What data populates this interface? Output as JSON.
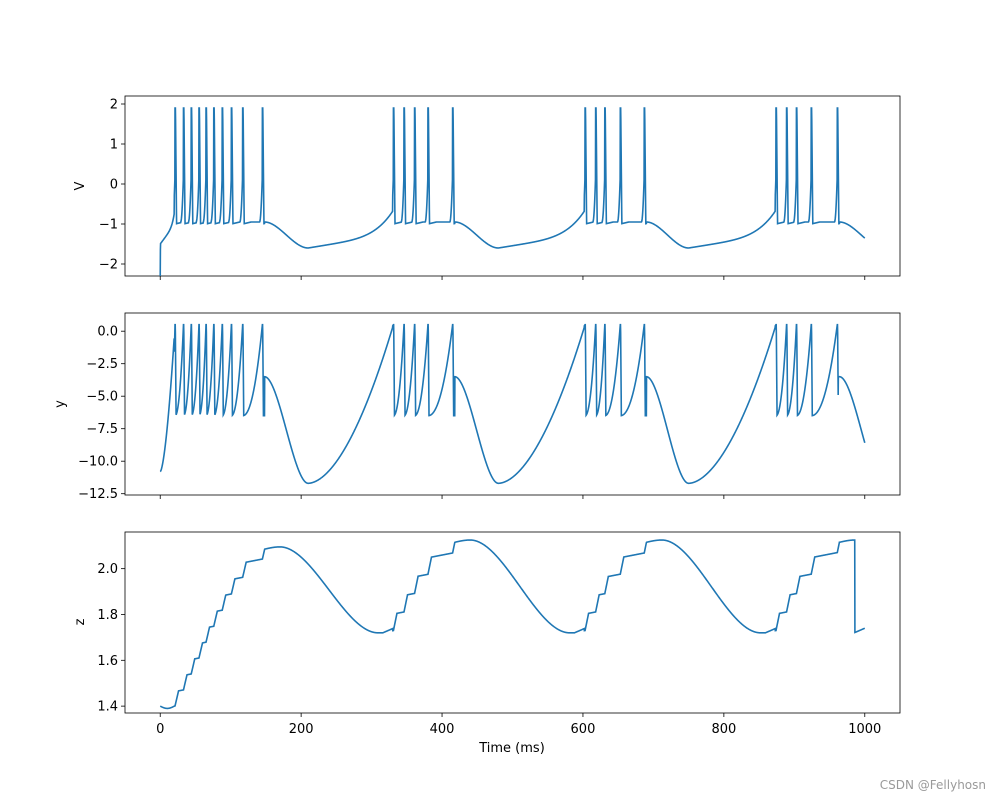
{
  "watermark": "CSDN @Fellyhosn",
  "colors": {
    "line": "#1f77b4",
    "axes": "#000000"
  },
  "chart_data": [
    {
      "type": "line",
      "xlabel": "",
      "ylabel": "V",
      "xlim": [
        -50,
        1050
      ],
      "ylim": [
        -2.3,
        2.2
      ],
      "xticks": [
        0,
        200,
        400,
        600,
        800,
        1000
      ],
      "yticks": [
        -2,
        -1,
        0,
        1,
        2
      ],
      "ytick_labels": [
        "−2",
        "−1",
        "0",
        "1",
        "2"
      ],
      "show_xtick_labels": false,
      "model": {
        "spikes": [
          [
            0,
            21,
            33,
            44,
            55,
            65,
            76,
            88,
            101,
            117,
            145
          ],
          [
            1,
            331,
            346,
            361,
            380,
            415
          ],
          [
            2,
            603,
            618,
            631,
            653,
            687
          ],
          [
            3,
            874,
            889,
            903,
            924,
            961
          ]
        ],
        "burst_ends": [
          148,
          418,
          690,
          964
        ],
        "trough_times": [
          210,
          480,
          750
        ]
      },
      "series": [
        {
          "name": "V",
          "line_color": "#1f77b4",
          "x_range": [
            0,
            1000
          ],
          "spike_peak": 1.9,
          "post_spike_reset": -1.0,
          "inter_burst_min": -1.6,
          "initial_value": -2.3
        }
      ]
    },
    {
      "type": "line",
      "xlabel": "",
      "ylabel": "y",
      "xlim": [
        -50,
        1050
      ],
      "ylim": [
        -12.6,
        1.4
      ],
      "xticks": [
        0,
        200,
        400,
        600,
        800,
        1000
      ],
      "yticks": [
        0.0,
        -2.5,
        -5.0,
        -7.5,
        -10.0,
        -12.5
      ],
      "ytick_labels": [
        "0.0",
        "−2.5",
        "−5.0",
        "−7.5",
        "−10.0",
        "−12.5"
      ],
      "show_xtick_labels": false,
      "series": [
        {
          "name": "y",
          "line_color": "#1f77b4",
          "x_range": [
            0,
            1000
          ],
          "spike_peak": 0.5,
          "post_spike_reset": -6.5,
          "inter_burst_min": -11.8,
          "initial_value": -10.8
        }
      ]
    },
    {
      "type": "line",
      "xlabel": "Time (ms)",
      "ylabel": "z",
      "xlim": [
        -50,
        1050
      ],
      "ylim": [
        1.37,
        2.16
      ],
      "xticks": [
        0,
        200,
        400,
        600,
        800,
        1000
      ],
      "xtick_labels": [
        "0",
        "200",
        "400",
        "600",
        "800",
        "1000"
      ],
      "yticks": [
        1.4,
        1.6,
        1.8,
        2.0
      ],
      "ytick_labels": [
        "1.4",
        "1.6",
        "1.8",
        "2.0"
      ],
      "show_xtick_labels": true,
      "series": [
        {
          "name": "z",
          "line_color": "#1f77b4",
          "x_range": [
            0,
            1000
          ],
          "initial_value": 1.4,
          "peak_value": 2.12,
          "min_value": 1.72,
          "step_per_spike": 0.06
        }
      ]
    }
  ]
}
